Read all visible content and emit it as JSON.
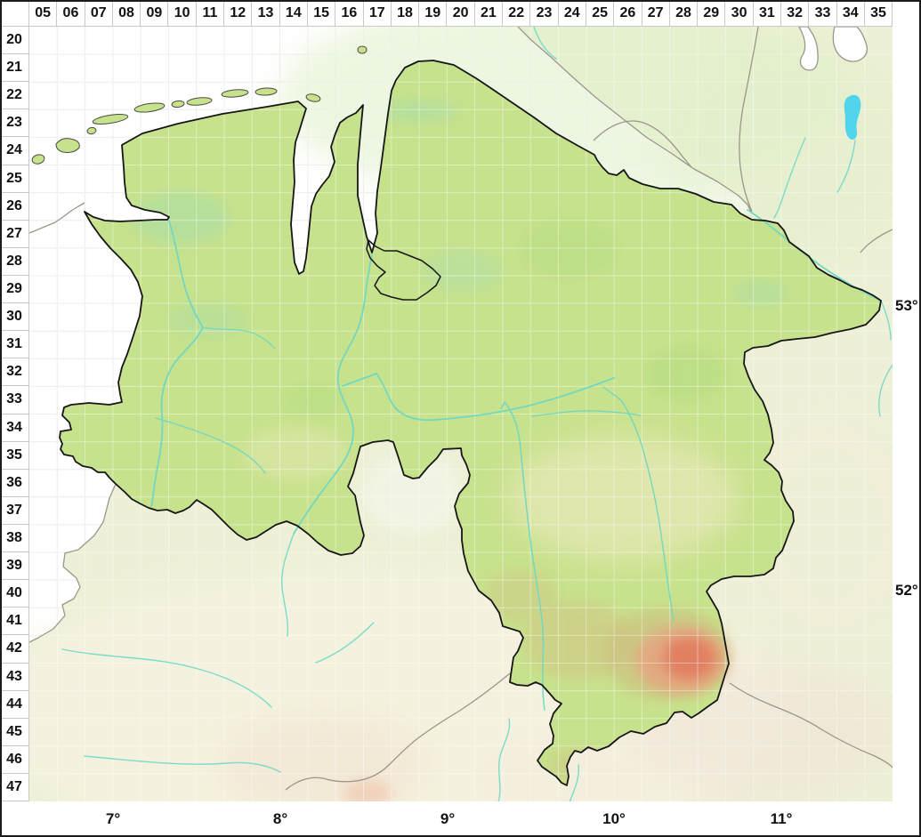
{
  "grid": {
    "columns": [
      "05",
      "06",
      "07",
      "08",
      "09",
      "10",
      "11",
      "12",
      "13",
      "14",
      "15",
      "16",
      "17",
      "18",
      "19",
      "20",
      "21",
      "22",
      "23",
      "24",
      "25",
      "26",
      "27",
      "28",
      "29",
      "30",
      "31",
      "32",
      "33",
      "34",
      "35"
    ],
    "rows": [
      "20",
      "21",
      "22",
      "23",
      "24",
      "25",
      "26",
      "27",
      "28",
      "29",
      "30",
      "31",
      "32",
      "33",
      "34",
      "35",
      "36",
      "37",
      "38",
      "39",
      "40",
      "41",
      "42",
      "43",
      "44",
      "45",
      "46",
      "47"
    ],
    "latitude_labels": [
      "53°",
      "52°"
    ],
    "longitude_labels": [
      "7°",
      "8°",
      "9°",
      "10°",
      "11°"
    ]
  },
  "map_colors": {
    "sea": "#ffffff",
    "lowland_green": "#c7e28c",
    "neighbor_land": "#edf0d6",
    "river_teal": "#72d8c2",
    "lake_blue": "#3fd2ee",
    "upland_cream": "#f1ecc6",
    "upland_olive": "#d2c284",
    "harz_salmon": "#ec9c80",
    "harz_core": "#e1765a",
    "state_boundary": "#161616",
    "neighbor_boundary": "#9b968c",
    "grid_line": "#e9e1e1"
  }
}
